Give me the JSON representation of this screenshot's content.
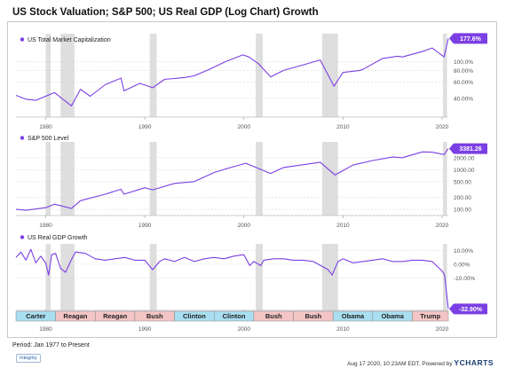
{
  "title": "US Stock Valuation; S&P 500; US Real GDP (Log Chart) Growth",
  "period_label": "Period: Jan 1977 to Present",
  "logo_text": "Integrity",
  "footer_text": "Aug 17 2020, 10:23AM EDT. Powered by ",
  "footer_brand": "YCHARTS",
  "colors": {
    "series": "#7b3fe4",
    "badge": "#7b3fe4",
    "recession": "#dedede",
    "grid": "#d9d9d9",
    "democrat": "#a9dff0",
    "republican": "#f4c5c5"
  },
  "recessions": [
    [
      1980.0,
      1980.5
    ],
    [
      1981.5,
      1982.9
    ],
    [
      1990.5,
      1991.2
    ],
    [
      2001.2,
      2001.9
    ],
    [
      2007.9,
      2009.5
    ],
    [
      2020.1,
      2020.5
    ]
  ],
  "presidents": [
    {
      "name": "Carter",
      "start": 1977.0,
      "end": 1981.0,
      "party": "D"
    },
    {
      "name": "Reagan",
      "start": 1981.0,
      "end": 1985.0,
      "party": "R"
    },
    {
      "name": "Reagan",
      "start": 1985.0,
      "end": 1989.0,
      "party": "R"
    },
    {
      "name": "Bush",
      "start": 1989.0,
      "end": 1993.0,
      "party": "R"
    },
    {
      "name": "Clinton",
      "start": 1993.0,
      "end": 1997.0,
      "party": "D"
    },
    {
      "name": "Clinton",
      "start": 1997.0,
      "end": 2001.0,
      "party": "D"
    },
    {
      "name": "Bush",
      "start": 2001.0,
      "end": 2005.0,
      "party": "R"
    },
    {
      "name": "Bush",
      "start": 2005.0,
      "end": 2009.0,
      "party": "R"
    },
    {
      "name": "Obama",
      "start": 2009.0,
      "end": 2013.0,
      "party": "D"
    },
    {
      "name": "Obama",
      "start": 2013.0,
      "end": 2017.0,
      "party": "D"
    },
    {
      "name": "Trump",
      "start": 2017.0,
      "end": 2020.63,
      "party": "R"
    }
  ],
  "chart_data": [
    {
      "type": "line",
      "label": "US Total Market Capitalization",
      "scale": "log",
      "x_range": [
        1977,
        2020.63
      ],
      "y_range": [
        25,
        200
      ],
      "x_ticks": [
        1980,
        1990,
        2000,
        2010,
        2020
      ],
      "y_ticks": [
        {
          "value": 40,
          "label": "40.00%"
        },
        {
          "value": 60,
          "label": "60.00%"
        },
        {
          "value": 80,
          "label": "80.00%"
        },
        {
          "value": 100,
          "label": "100.0%"
        }
      ],
      "last_value_label": "177.6%",
      "x": [
        1977,
        1978,
        1979,
        1980,
        1980.9,
        1982.6,
        1983.5,
        1984.5,
        1986,
        1987.6,
        1987.9,
        1989.5,
        1990.8,
        1992,
        1994,
        1995,
        1996.5,
        1998,
        1999.9,
        2000.5,
        2001.5,
        2002.7,
        2004,
        2006,
        2007.7,
        2009.1,
        2010,
        2011.7,
        2012,
        2014,
        2015.5,
        2016,
        2018,
        2019,
        2020.2,
        2020.63
      ],
      "y": [
        43,
        39,
        38,
        42,
        46,
        33,
        50,
        42,
        56,
        66,
        48,
        58,
        52,
        64,
        67,
        70,
        82,
        98,
        118,
        112,
        94,
        68,
        80,
        92,
        104,
        54,
        76,
        80,
        82,
        108,
        114,
        112,
        128,
        140,
        112,
        177.6
      ]
    },
    {
      "type": "line",
      "label": "S&P 500 Level",
      "scale": "log",
      "x_range": [
        1977,
        2020.63
      ],
      "y_range": [
        70,
        5000
      ],
      "x_ticks": [
        1980,
        1990,
        2000,
        2010,
        2020
      ],
      "y_ticks": [
        {
          "value": 100,
          "label": "100.00"
        },
        {
          "value": 200,
          "label": "200.00"
        },
        {
          "value": 500,
          "label": "500.00"
        },
        {
          "value": 1000,
          "label": "1000.00"
        },
        {
          "value": 2000,
          "label": "2000.00"
        }
      ],
      "last_value_label": "3381.26",
      "x": [
        1977,
        1978,
        1980,
        1980.9,
        1982.6,
        1983.5,
        1986,
        1987.6,
        1987.9,
        1990,
        1990.8,
        1993,
        1995,
        1997,
        1998.5,
        2000.2,
        2002.7,
        2004,
        2007.7,
        2009.2,
        2011,
        2013,
        2015,
        2016,
        2018,
        2019,
        2020.2,
        2020.63
      ],
      "y": [
        100,
        95,
        110,
        135,
        105,
        165,
        240,
        320,
        240,
        350,
        310,
        450,
        500,
        850,
        1100,
        1450,
        800,
        1130,
        1540,
        735,
        1300,
        1700,
        2080,
        2000,
        2800,
        2750,
        2400,
        3381.26
      ]
    },
    {
      "type": "line",
      "label": "US Real GDP Growth",
      "scale": "linear",
      "x_range": [
        1977,
        2020.63
      ],
      "y_range": [
        -34,
        15
      ],
      "x_ticks": [
        1980,
        1990,
        2000,
        2010,
        2020
      ],
      "y_ticks": [
        {
          "value": 10,
          "label": "10.00%"
        },
        {
          "value": 0,
          "label": "0.00%"
        },
        {
          "value": -10,
          "label": "-10.00%"
        }
      ],
      "last_value_label": "-32.90%",
      "x": [
        1977,
        1977.5,
        1978,
        1978.5,
        1979,
        1979.5,
        1980,
        1980.3,
        1980.6,
        1981,
        1981.5,
        1982,
        1982.5,
        1983,
        1984,
        1985,
        1986,
        1987,
        1988,
        1989,
        1990,
        1990.8,
        1991.5,
        1992,
        1993,
        1994,
        1995,
        1996,
        1997,
        1998,
        1999,
        2000,
        2000.6,
        2001,
        2001.7,
        2002,
        2003,
        2004,
        2005,
        2006,
        2007,
        2008,
        2008.5,
        2008.9,
        2009.5,
        2010,
        2011,
        2012,
        2013,
        2014,
        2015,
        2016,
        2017,
        2018,
        2019,
        2020,
        2020.25,
        2020.63
      ],
      "y": [
        5,
        9,
        3,
        11,
        1,
        6,
        1,
        -8,
        7,
        8,
        -3,
        -6,
        2,
        9,
        8,
        4,
        3,
        4,
        5,
        3,
        3,
        -4,
        2,
        4,
        2,
        5,
        2,
        4,
        5,
        4,
        6,
        7,
        -1,
        2,
        -1,
        3,
        4,
        4,
        3,
        3,
        2,
        -2,
        -4,
        -8,
        2,
        4,
        1,
        2,
        3,
        4,
        2,
        2,
        3,
        3,
        2,
        -5,
        -8,
        -32.9
      ]
    }
  ]
}
